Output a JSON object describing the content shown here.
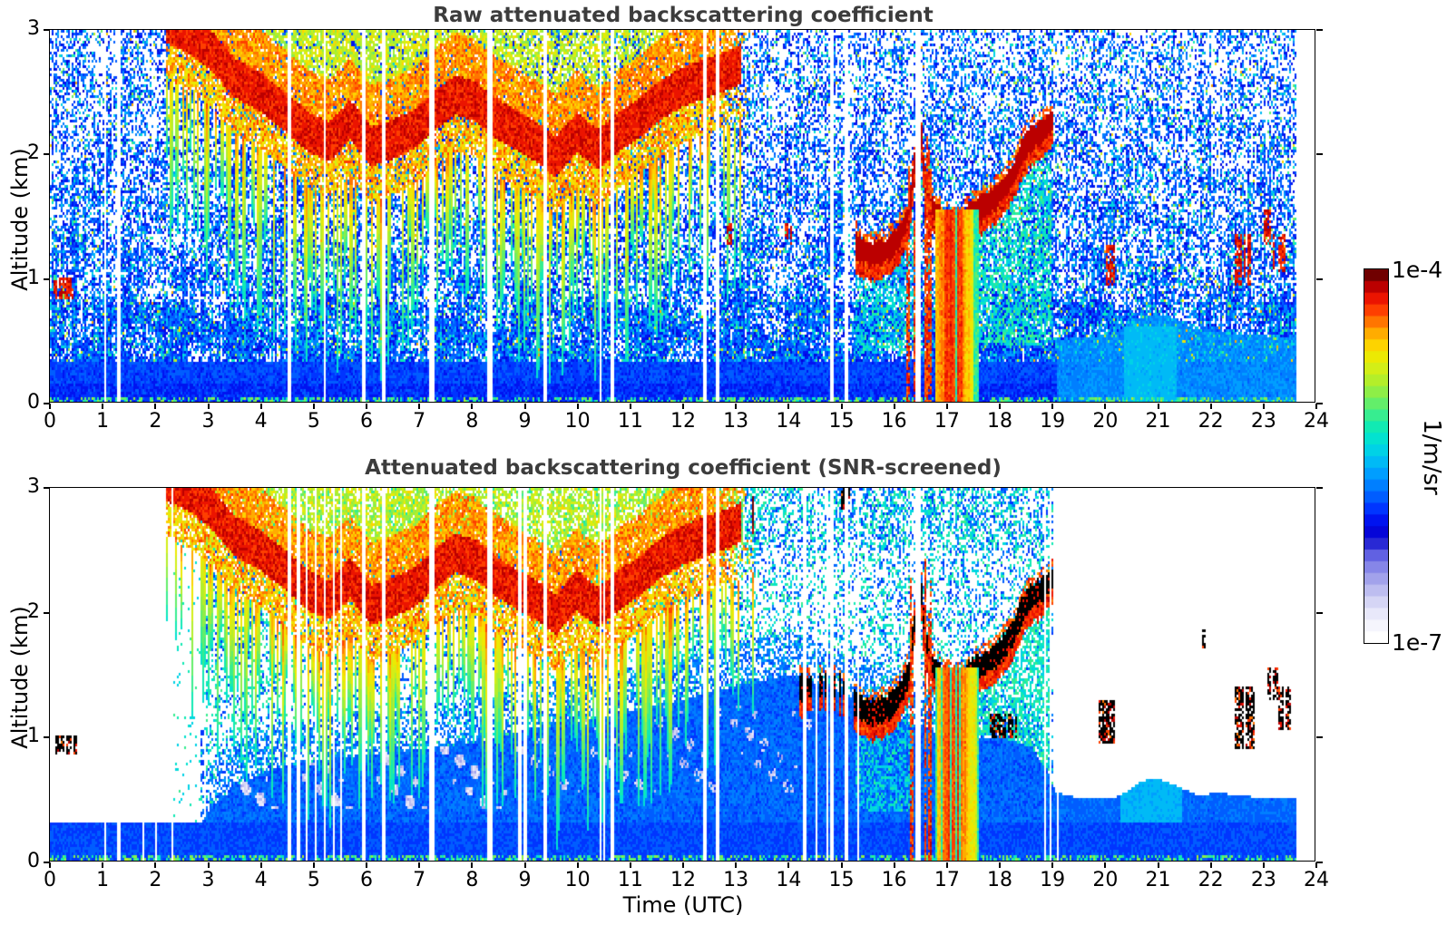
{
  "chart_data": {
    "type": "heatmap",
    "xlabel": "Time (UTC)",
    "x_range_hours": [
      0,
      24
    ],
    "x_ticks": [
      "0",
      "1",
      "2",
      "3",
      "4",
      "5",
      "6",
      "7",
      "8",
      "9",
      "10",
      "11",
      "12",
      "13",
      "14",
      "15",
      "16",
      "17",
      "18",
      "19",
      "20",
      "21",
      "22",
      "23",
      "24"
    ],
    "y_range_km": [
      0,
      3
    ],
    "y_ticks": [
      "0",
      "1",
      "2",
      "3"
    ],
    "data_end_time": 23.66,
    "title_color": "#3c3c3c",
    "panels": [
      {
        "id": "raw",
        "title": "Raw attenuated backscattering coefficient",
        "ylabel": "Altitude (km)",
        "screened": false,
        "seed": 7
      },
      {
        "id": "screened",
        "title": "Attenuated backscattering coefficient (SNR-screened)",
        "ylabel": "Altitude (km)",
        "screened": true,
        "seed": 99
      }
    ],
    "colorbar": {
      "max_label": "1e-4",
      "min_label": "1e-7",
      "units": "1/m/sr",
      "n_segments": 32,
      "scale": "log"
    },
    "colormap_stops": [
      [
        0.0,
        [
          255,
          255,
          255
        ]
      ],
      [
        0.05,
        [
          240,
          240,
          252
        ]
      ],
      [
        0.09,
        [
          218,
          218,
          246
        ]
      ],
      [
        0.13,
        [
          188,
          188,
          240
        ]
      ],
      [
        0.17,
        [
          155,
          155,
          234
        ]
      ],
      [
        0.21,
        [
          120,
          120,
          230
        ]
      ],
      [
        0.245,
        [
          68,
          68,
          221
        ]
      ],
      [
        0.27,
        [
          17,
          17,
          204
        ]
      ],
      [
        0.3,
        [
          0,
          0,
          221
        ]
      ],
      [
        0.34,
        [
          0,
          34,
          255
        ]
      ],
      [
        0.38,
        [
          0,
          85,
          255
        ]
      ],
      [
        0.42,
        [
          0,
          128,
          255
        ]
      ],
      [
        0.46,
        [
          0,
          166,
          255
        ]
      ],
      [
        0.5,
        [
          0,
          200,
          240
        ]
      ],
      [
        0.54,
        [
          0,
          224,
          216
        ]
      ],
      [
        0.58,
        [
          16,
          234,
          180
        ]
      ],
      [
        0.62,
        [
          64,
          238,
          136
        ]
      ],
      [
        0.66,
        [
          120,
          238,
          88
        ]
      ],
      [
        0.7,
        [
          170,
          238,
          48
        ]
      ],
      [
        0.74,
        [
          210,
          238,
          24
        ]
      ],
      [
        0.78,
        [
          240,
          232,
          0
        ]
      ],
      [
        0.81,
        [
          255,
          208,
          0
        ]
      ],
      [
        0.84,
        [
          255,
          170,
          0
        ]
      ],
      [
        0.87,
        [
          255,
          119,
          0
        ]
      ],
      [
        0.9,
        [
          255,
          68,
          0
        ]
      ],
      [
        0.93,
        [
          242,
          24,
          0
        ]
      ],
      [
        0.96,
        [
          204,
          0,
          0
        ]
      ],
      [
        0.98,
        [
          160,
          0,
          0
        ]
      ],
      [
        1.0,
        [
          112,
          0,
          0
        ]
      ]
    ],
    "features": {
      "cloud_band": {
        "t_start": 2.2,
        "t_end": 13.4,
        "center_km": [
          [
            2.2,
            3.06
          ],
          [
            2.7,
            2.96
          ],
          [
            3.1,
            2.82
          ],
          [
            3.5,
            2.62
          ],
          [
            4.0,
            2.5
          ],
          [
            4.5,
            2.33
          ],
          [
            4.9,
            2.18
          ],
          [
            5.3,
            2.1
          ],
          [
            5.7,
            2.28
          ],
          [
            6.1,
            2.06
          ],
          [
            6.5,
            2.12
          ],
          [
            6.9,
            2.2
          ],
          [
            7.3,
            2.35
          ],
          [
            7.7,
            2.48
          ],
          [
            8.1,
            2.42
          ],
          [
            8.5,
            2.28
          ],
          [
            8.9,
            2.18
          ],
          [
            9.3,
            2.08
          ],
          [
            9.6,
            1.98
          ],
          [
            10.0,
            2.18
          ],
          [
            10.4,
            2.04
          ],
          [
            10.8,
            2.18
          ],
          [
            11.2,
            2.3
          ],
          [
            11.6,
            2.44
          ],
          [
            12.0,
            2.54
          ],
          [
            12.5,
            2.62
          ],
          [
            13.0,
            2.7
          ],
          [
            13.4,
            2.8
          ]
        ]
      },
      "dark_layer": {
        "raw_t_start": 15.3,
        "screened_t_start": 14.2,
        "sparse_before": 15.3,
        "t_end": 19.05,
        "path_km": [
          [
            14.2,
            1.38
          ],
          [
            14.6,
            1.42
          ],
          [
            15.0,
            1.4
          ],
          [
            15.35,
            1.24
          ],
          [
            15.6,
            1.19
          ],
          [
            15.9,
            1.23
          ],
          [
            16.1,
            1.32
          ],
          [
            16.3,
            1.5
          ],
          [
            16.45,
            2.1
          ],
          [
            16.52,
            2.3
          ],
          [
            16.6,
            1.8
          ],
          [
            16.8,
            1.52
          ],
          [
            17.0,
            1.44
          ],
          [
            17.2,
            1.38
          ],
          [
            17.45,
            1.52
          ],
          [
            17.7,
            1.58
          ],
          [
            17.95,
            1.65
          ],
          [
            18.15,
            1.75
          ],
          [
            18.3,
            1.85
          ],
          [
            18.45,
            2.02
          ],
          [
            18.6,
            2.12
          ],
          [
            18.8,
            2.17
          ],
          [
            19.05,
            2.28
          ]
        ]
      },
      "precip": {
        "spikes": [
          [
            16.25,
            16.44,
            2.35
          ],
          [
            16.6,
            16.78,
            2.5
          ]
        ],
        "core_t": [
          16.8,
          17.62
        ],
        "core_top_km": 1.55,
        "core_intensity": [
          [
            16.8,
            0.78
          ],
          [
            16.95,
            0.88
          ],
          [
            17.1,
            0.93
          ],
          [
            17.3,
            0.9
          ],
          [
            17.45,
            0.8
          ],
          [
            17.62,
            0.72
          ]
        ]
      },
      "boundary_layer_top_km": [
        [
          0,
          0.3
        ],
        [
          2.85,
          0.3
        ],
        [
          3.1,
          0.45
        ],
        [
          3.6,
          0.62
        ],
        [
          4.2,
          0.74
        ],
        [
          5.0,
          0.8
        ],
        [
          6.0,
          0.86
        ],
        [
          7.0,
          0.9
        ],
        [
          8.0,
          0.95
        ],
        [
          9.0,
          1.05
        ],
        [
          10.0,
          1.12
        ],
        [
          11.0,
          1.2
        ],
        [
          12.0,
          1.3
        ],
        [
          13.0,
          1.4
        ],
        [
          14.0,
          1.5
        ],
        [
          14.6,
          1.42
        ],
        [
          15.2,
          1.32
        ],
        [
          15.8,
          1.22
        ],
        [
          16.4,
          1.1
        ],
        [
          17.0,
          1.0
        ],
        [
          18.0,
          1.0
        ],
        [
          18.6,
          0.92
        ],
        [
          18.9,
          0.75
        ],
        [
          19.1,
          0.55
        ],
        [
          19.6,
          0.5
        ],
        [
          20.3,
          0.52
        ],
        [
          20.7,
          0.64
        ],
        [
          21.0,
          0.67
        ],
        [
          21.4,
          0.6
        ],
        [
          21.8,
          0.53
        ],
        [
          22.2,
          0.55
        ],
        [
          22.6,
          0.52
        ],
        [
          23.66,
          0.51
        ]
      ],
      "raw_low_bump_km": [
        [
          19.1,
          0.5
        ],
        [
          20.2,
          0.55
        ],
        [
          20.6,
          0.68
        ],
        [
          21.2,
          0.7
        ],
        [
          21.7,
          0.6
        ],
        [
          22.5,
          0.55
        ],
        [
          23.66,
          0.52
        ]
      ],
      "gaps_raw": [
        [
          1.05,
          0.025
        ],
        [
          1.32,
          0.03
        ],
        [
          4.55,
          0.03
        ],
        [
          5.22,
          0.02
        ],
        [
          5.95,
          0.02
        ],
        [
          6.32,
          0.025
        ],
        [
          7.25,
          0.03
        ],
        [
          8.35,
          0.035
        ],
        [
          9.4,
          0.03
        ],
        [
          10.45,
          0.02
        ],
        [
          10.68,
          0.025
        ],
        [
          12.42,
          0.02
        ],
        [
          12.66,
          0.03
        ],
        [
          14.85,
          0.03
        ],
        [
          15.12,
          0.02
        ],
        [
          16.48,
          0.045
        ]
      ],
      "gaps_screened_extra": [
        [
          1.78,
          0.015
        ],
        [
          2.02,
          0.015
        ],
        [
          2.32,
          0.015
        ],
        [
          4.72,
          0.015
        ],
        [
          4.88,
          0.015
        ],
        [
          5.05,
          0.015
        ],
        [
          5.38,
          0.015
        ],
        [
          5.52,
          0.015
        ],
        [
          8.92,
          0.015
        ],
        [
          9.02,
          0.015
        ],
        [
          10.52,
          0.015
        ],
        [
          14.32,
          0.015
        ],
        [
          14.55,
          0.015
        ],
        [
          14.75,
          0.015
        ],
        [
          15.35,
          0.015
        ],
        [
          18.88,
          0.015
        ],
        [
          19.0,
          0.015
        ],
        [
          19.12,
          0.015
        ]
      ],
      "spots_raw_red": [
        [
          0.08,
          0.45,
          0.82,
          1.0
        ],
        [
          12.85,
          12.98,
          1.28,
          1.45
        ],
        [
          13.9,
          14.1,
          1.28,
          1.45
        ],
        [
          19.95,
          20.2,
          0.95,
          1.28
        ],
        [
          22.5,
          22.8,
          0.95,
          1.35
        ],
        [
          23.02,
          23.2,
          1.28,
          1.55
        ],
        [
          23.22,
          23.45,
          1.05,
          1.35
        ]
      ],
      "spots_screened_black": [
        [
          0.12,
          0.5,
          0.86,
          1.02
        ],
        [
          15.0,
          15.2,
          2.82,
          3.0
        ],
        [
          17.85,
          18.35,
          1.0,
          1.18
        ],
        [
          19.9,
          20.2,
          0.95,
          1.3
        ],
        [
          21.88,
          21.95,
          1.72,
          1.86
        ],
        [
          22.5,
          22.85,
          0.9,
          1.4
        ],
        [
          23.1,
          23.3,
          1.3,
          1.55
        ],
        [
          23.3,
          23.55,
          1.05,
          1.4
        ]
      ]
    }
  }
}
